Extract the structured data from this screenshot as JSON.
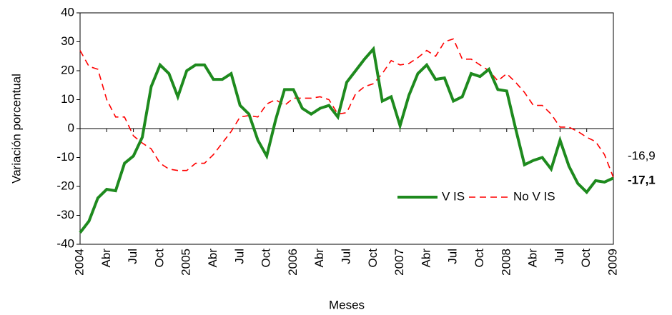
{
  "chart_data": {
    "type": "line",
    "y_label": "Variación porcentual",
    "x_label": "Meses",
    "categories": [
      "2004",
      null,
      null,
      "Abr",
      null,
      null,
      "Jul",
      null,
      null,
      "Oct",
      null,
      null,
      "2005",
      null,
      null,
      "Abr",
      null,
      null,
      "Jul",
      null,
      null,
      "Oct",
      null,
      null,
      "2006",
      null,
      null,
      "Abr",
      null,
      null,
      "Jul",
      null,
      null,
      "Oct",
      null,
      null,
      "2007",
      null,
      null,
      "Abr",
      null,
      null,
      "Jul",
      null,
      null,
      "Oct",
      null,
      null,
      "2008",
      null,
      null,
      "Abr",
      null,
      null,
      "Jul",
      null,
      null,
      "Oct",
      null,
      null,
      "2009"
    ],
    "series": [
      {
        "name": "V IS",
        "color": "#1e8a1e",
        "dash": false,
        "end_label": "-17,1",
        "values": [
          -36,
          -32,
          -24,
          -21,
          -21.5,
          -12,
          -9.5,
          -3,
          14.5,
          22,
          19,
          11,
          20,
          22,
          22,
          17,
          17,
          19,
          8,
          5,
          -4,
          -9.5,
          3,
          13.5,
          13.5,
          7,
          5,
          7,
          8,
          4,
          16,
          20,
          24,
          27.5,
          9.5,
          11,
          1,
          11.5,
          19,
          22,
          17,
          17.5,
          9.5,
          11,
          19,
          18,
          20.5,
          13.5,
          13,
          0,
          -12.5,
          -11,
          -10,
          -14,
          -4,
          -13,
          -19,
          -22,
          -18,
          -18.5,
          -17.1
        ]
      },
      {
        "name": "No V IS",
        "color": "#ff0000",
        "dash": true,
        "end_label": "-16,9",
        "values": [
          27,
          21.5,
          20.5,
          10,
          4,
          4,
          -2.5,
          -5,
          -7,
          -12,
          -14,
          -14.5,
          -14.5,
          -12,
          -12,
          -9,
          -5,
          -1,
          4,
          4.5,
          4,
          8.5,
          10,
          8,
          10.5,
          10.5,
          10.5,
          11,
          10,
          5,
          5.5,
          12,
          14.5,
          15.5,
          19,
          23.5,
          22,
          22.5,
          24.5,
          27,
          25,
          30,
          31,
          24,
          24,
          22,
          20,
          16.5,
          19,
          16,
          12.5,
          8,
          8,
          5,
          0.5,
          0.5,
          -1,
          -3,
          -4.5,
          -9,
          -16.9
        ]
      }
    ],
    "ylim": [
      -40,
      40
    ],
    "yticks": [
      -40,
      -30,
      -20,
      -10,
      0,
      10,
      20,
      30,
      40
    ],
    "grid": false
  }
}
